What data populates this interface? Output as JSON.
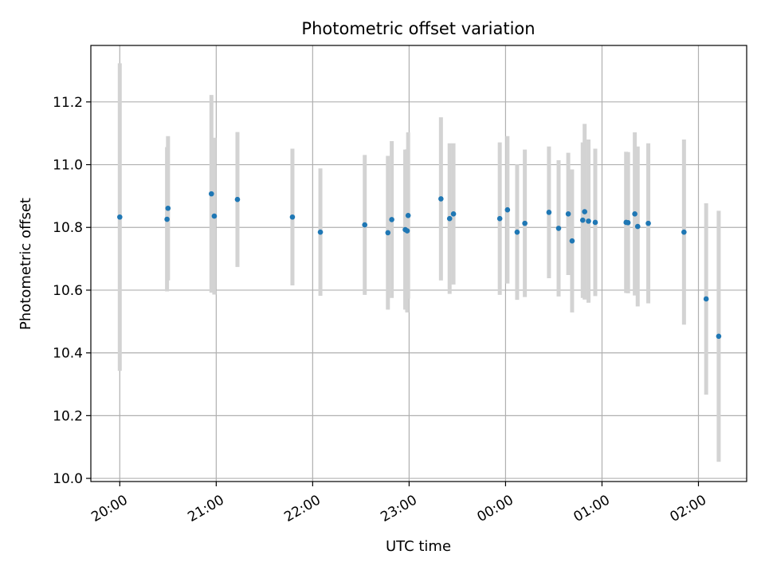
{
  "chart_data": {
    "type": "scatter",
    "title": "Photometric offset variation",
    "xlabel": "UTC time",
    "ylabel": "Photometric offset",
    "x_ticks": [
      "20:00",
      "21:00",
      "22:00",
      "23:00",
      "00:00",
      "01:00",
      "02:00"
    ],
    "y_ticks": [
      "10.0",
      "10.2",
      "10.4",
      "10.6",
      "10.8",
      "11.0",
      "11.2"
    ],
    "x_unit": "hours after 20:00 UTC",
    "xlim": [
      -0.3,
      6.5
    ],
    "ylim": [
      9.99,
      11.38
    ],
    "grid": true,
    "colors": {
      "point": "#1f77b4",
      "errorbar": "#d3d3d3",
      "grid": "#b0b0b0"
    },
    "points": [
      {
        "x": 0.0,
        "y": 10.833,
        "err": 0.49
      },
      {
        "x": 0.49,
        "y": 10.826,
        "err": 0.23
      },
      {
        "x": 0.5,
        "y": 10.861,
        "err": 0.23
      },
      {
        "x": 0.95,
        "y": 10.907,
        "err": 0.315
      },
      {
        "x": 0.98,
        "y": 10.836,
        "err": 0.25
      },
      {
        "x": 1.22,
        "y": 10.889,
        "err": 0.215
      },
      {
        "x": 1.79,
        "y": 10.833,
        "err": 0.218
      },
      {
        "x": 2.08,
        "y": 10.785,
        "err": 0.203
      },
      {
        "x": 2.54,
        "y": 10.808,
        "err": 0.223
      },
      {
        "x": 2.78,
        "y": 10.783,
        "err": 0.245
      },
      {
        "x": 2.82,
        "y": 10.825,
        "err": 0.25
      },
      {
        "x": 2.96,
        "y": 10.793,
        "err": 0.255
      },
      {
        "x": 2.98,
        "y": 10.789,
        "err": 0.26
      },
      {
        "x": 2.99,
        "y": 10.838,
        "err": 0.265
      },
      {
        "x": 3.33,
        "y": 10.891,
        "err": 0.26
      },
      {
        "x": 3.42,
        "y": 10.828,
        "err": 0.24
      },
      {
        "x": 3.46,
        "y": 10.843,
        "err": 0.225
      },
      {
        "x": 3.94,
        "y": 10.828,
        "err": 0.243
      },
      {
        "x": 4.02,
        "y": 10.856,
        "err": 0.235
      },
      {
        "x": 4.12,
        "y": 10.785,
        "err": 0.216
      },
      {
        "x": 4.2,
        "y": 10.813,
        "err": 0.235
      },
      {
        "x": 4.45,
        "y": 10.848,
        "err": 0.21
      },
      {
        "x": 4.55,
        "y": 10.797,
        "err": 0.217
      },
      {
        "x": 4.65,
        "y": 10.843,
        "err": 0.195
      },
      {
        "x": 4.69,
        "y": 10.757,
        "err": 0.228
      },
      {
        "x": 4.8,
        "y": 10.823,
        "err": 0.248
      },
      {
        "x": 4.82,
        "y": 10.85,
        "err": 0.28
      },
      {
        "x": 4.86,
        "y": 10.82,
        "err": 0.26
      },
      {
        "x": 4.93,
        "y": 10.816,
        "err": 0.235
      },
      {
        "x": 5.25,
        "y": 10.816,
        "err": 0.225
      },
      {
        "x": 5.27,
        "y": 10.815,
        "err": 0.225
      },
      {
        "x": 5.34,
        "y": 10.843,
        "err": 0.26
      },
      {
        "x": 5.37,
        "y": 10.803,
        "err": 0.255
      },
      {
        "x": 5.48,
        "y": 10.813,
        "err": 0.255
      },
      {
        "x": 5.85,
        "y": 10.785,
        "err": 0.295
      },
      {
        "x": 6.08,
        "y": 10.572,
        "err": 0.305
      },
      {
        "x": 6.21,
        "y": 10.453,
        "err": 0.4
      }
    ]
  }
}
